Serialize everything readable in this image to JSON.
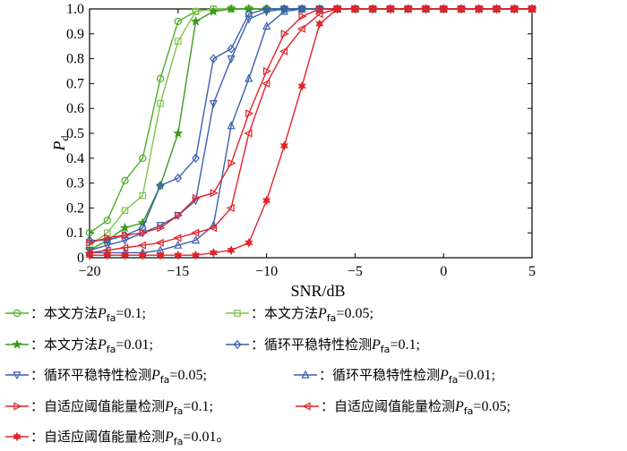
{
  "chart_data": {
    "type": "line",
    "title": "",
    "xlabel": "SNR/dB",
    "ylabel_main": "P",
    "ylabel_sub": "d",
    "xlim": [
      -20,
      5
    ],
    "ylim": [
      0,
      1
    ],
    "xticks": [
      -20,
      -15,
      -10,
      -5,
      0,
      5
    ],
    "xtick_labels": [
      "−20",
      "−15",
      "−10",
      "−5",
      "0",
      "5"
    ],
    "yticks": [
      0,
      0.1,
      0.2,
      0.3,
      0.4,
      0.5,
      0.6,
      0.7,
      0.8,
      0.9,
      1.0
    ],
    "ytick_labels": [
      "0",
      "0.1",
      "0.2",
      "0.3",
      "0.4",
      "0.5",
      "0.6",
      "0.7",
      "0.8",
      "0.9",
      "1.0"
    ],
    "grid": false,
    "legend_position": "bottom",
    "x": [
      -20,
      -19,
      -18,
      -17,
      -16,
      -15,
      -14,
      -13,
      -12,
      -11,
      -10,
      -9,
      -8,
      -7,
      -6,
      -5,
      -4,
      -3,
      -2,
      -1,
      0,
      1,
      2,
      3,
      4,
      5
    ],
    "series": [
      {
        "marker": "circle",
        "color": "#4caf28",
        "values": [
          0.1,
          0.15,
          0.31,
          0.4,
          0.72,
          0.95,
          0.99,
          1,
          1,
          1,
          1,
          1,
          1,
          1,
          1,
          1,
          1,
          1,
          1,
          1,
          1,
          1,
          1,
          1,
          1,
          1
        ]
      },
      {
        "marker": "square",
        "color": "#7cc44a",
        "values": [
          0.05,
          0.1,
          0.19,
          0.25,
          0.62,
          0.87,
          0.99,
          1,
          1,
          1,
          1,
          1,
          1,
          1,
          1,
          1,
          1,
          1,
          1,
          1,
          1,
          1,
          1,
          1,
          1,
          1
        ]
      },
      {
        "marker": "star",
        "color": "#3a9a20",
        "values": [
          0.03,
          0.07,
          0.12,
          0.14,
          0.29,
          0.5,
          0.95,
          0.99,
          1,
          1,
          1,
          1,
          1,
          1,
          1,
          1,
          1,
          1,
          1,
          1,
          1,
          1,
          1,
          1,
          1,
          1
        ]
      },
      {
        "marker": "diamond",
        "color": "#3a5fb0",
        "values": [
          0.07,
          0.07,
          0.09,
          0.12,
          0.29,
          0.32,
          0.4,
          0.8,
          0.84,
          0.98,
          1,
          1,
          1,
          1,
          1,
          1,
          1,
          1,
          1,
          1,
          1,
          1,
          1,
          1,
          1,
          1
        ]
      },
      {
        "marker": "triangle-down",
        "color": "#3a5fb0",
        "values": [
          0.03,
          0.05,
          0.07,
          0.1,
          0.13,
          0.17,
          0.23,
          0.62,
          0.8,
          0.96,
          0.99,
          1,
          1,
          1,
          1,
          1,
          1,
          1,
          1,
          1,
          1,
          1,
          1,
          1,
          1,
          1
        ]
      },
      {
        "marker": "triangle-up",
        "color": "#3a5fb0",
        "values": [
          0.02,
          0.02,
          0.02,
          0.02,
          0.03,
          0.05,
          0.07,
          0.13,
          0.53,
          0.72,
          0.93,
          0.99,
          1,
          1,
          1,
          1,
          1,
          1,
          1,
          1,
          1,
          1,
          1,
          1,
          1,
          1
        ]
      },
      {
        "marker": "triangle-right",
        "color": "#e0242b",
        "values": [
          0.06,
          0.08,
          0.09,
          0.1,
          0.12,
          0.17,
          0.24,
          0.26,
          0.38,
          0.58,
          0.75,
          0.9,
          0.97,
          1,
          1,
          1,
          1,
          1,
          1,
          1,
          1,
          1,
          1,
          1,
          1,
          1
        ]
      },
      {
        "marker": "triangle-left",
        "color": "#e0242b",
        "values": [
          0.02,
          0.03,
          0.04,
          0.05,
          0.06,
          0.08,
          0.1,
          0.12,
          0.2,
          0.5,
          0.7,
          0.83,
          0.92,
          0.98,
          1,
          1,
          1,
          1,
          1,
          1,
          1,
          1,
          1,
          1,
          1,
          1
        ]
      },
      {
        "marker": "hexstar",
        "color": "#e0242b",
        "values": [
          0.01,
          0.01,
          0.01,
          0.01,
          0.01,
          0.01,
          0.01,
          0.02,
          0.03,
          0.06,
          0.23,
          0.45,
          0.69,
          0.94,
          1,
          1,
          1,
          1,
          1,
          1,
          1,
          1,
          1,
          1,
          1,
          1
        ]
      }
    ]
  },
  "legend": [
    {
      "prefix": "：本文方法",
      "p": "P",
      "sub": "fa",
      "suffix": "=0.1;",
      "marker": "circle",
      "color": "#4caf28"
    },
    {
      "prefix": "：本文方法",
      "p": "P",
      "sub": "fa",
      "suffix": "=0.05;",
      "marker": "square",
      "color": "#7cc44a"
    },
    {
      "prefix": "：本文方法",
      "p": "P",
      "sub": "fa",
      "suffix": "=0.01;",
      "marker": "star",
      "color": "#3a9a20"
    },
    {
      "prefix": "：循环平稳特性检测",
      "p": "P",
      "sub": "fa",
      "suffix": "=0.1;",
      "marker": "diamond",
      "color": "#3a5fb0"
    },
    {
      "prefix": "：循环平稳特性检测",
      "p": "P",
      "sub": "fa",
      "suffix": "=0.05;",
      "marker": "triangle-down",
      "color": "#3a5fb0"
    },
    {
      "prefix": "：循环平稳特性检测",
      "p": "P",
      "sub": "fa",
      "suffix": "=0.01;",
      "marker": "triangle-up",
      "color": "#3a5fb0"
    },
    {
      "prefix": "：自适应阈值能量检测",
      "p": "P",
      "sub": "fa",
      "suffix": "=0.1;",
      "marker": "triangle-right",
      "color": "#e0242b"
    },
    {
      "prefix": "：自适应阈值能量检测",
      "p": "P",
      "sub": "fa",
      "suffix": "=0.05;",
      "marker": "triangle-left",
      "color": "#e0242b"
    },
    {
      "prefix": "：自适应阈值能量检测",
      "p": "P",
      "sub": "fa",
      "suffix": "=0.01。",
      "marker": "hexstar",
      "color": "#e0242b"
    }
  ]
}
